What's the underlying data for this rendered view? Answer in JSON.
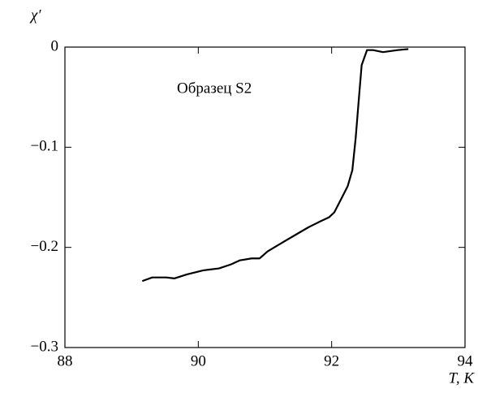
{
  "chart_data": {
    "type": "line",
    "y_label": "χ′",
    "x_label": "T, K",
    "annotation": "Образец S2",
    "x": [
      89.16,
      89.31,
      89.52,
      89.64,
      89.83,
      90.07,
      90.31,
      90.49,
      90.62,
      90.8,
      90.92,
      91.04,
      91.29,
      91.47,
      91.65,
      91.83,
      91.96,
      92.04,
      92.14,
      92.24,
      92.31,
      92.36,
      92.41,
      92.45,
      92.53,
      92.62,
      92.77,
      92.99,
      93.15
    ],
    "series": [
      {
        "name": "Образец S2",
        "color": "#000000",
        "values": [
          -0.2336,
          -0.23,
          -0.23,
          -0.231,
          -0.227,
          -0.223,
          -0.221,
          -0.217,
          -0.213,
          -0.211,
          -0.211,
          -0.204,
          -0.194,
          -0.187,
          -0.18,
          -0.174,
          -0.17,
          -0.165,
          -0.152,
          -0.139,
          -0.123,
          -0.091,
          -0.05,
          -0.018,
          -0.003,
          -0.003,
          -0.005,
          -0.003,
          -0.002
        ]
      }
    ],
    "xlim": [
      88,
      94
    ],
    "xticks": [
      88,
      90,
      92,
      94
    ],
    "ylim": [
      -0.3,
      0
    ],
    "yticks": [
      {
        "value": 0,
        "label": "0"
      },
      {
        "value": -0.1,
        "label": "−0.1"
      },
      {
        "value": -0.2,
        "label": "−0.2"
      },
      {
        "value": -0.3,
        "label": "−0.3"
      }
    ]
  }
}
